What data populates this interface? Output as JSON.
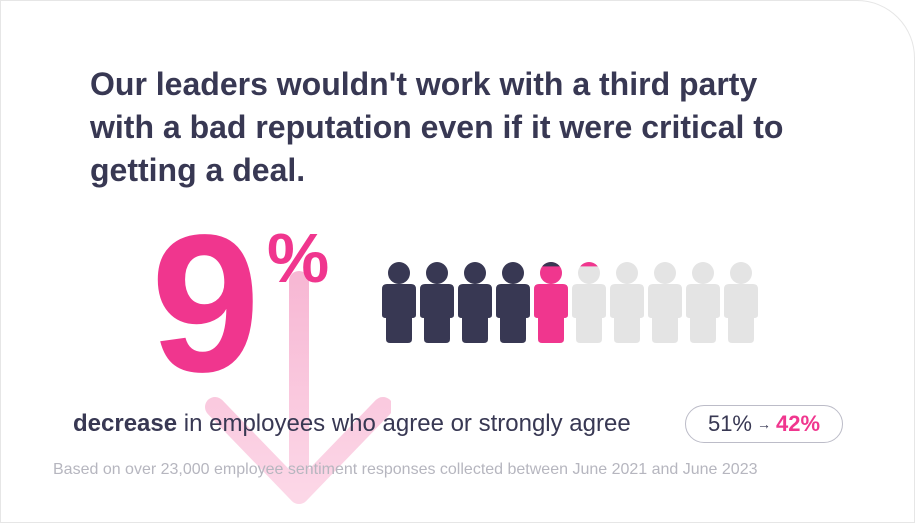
{
  "headline": "Our leaders wouldn't work with a third party with a bad reputation even if it were critical to getting a deal.",
  "stat": {
    "value": "9",
    "unit": "%",
    "direction_icon": "arrow-down-icon"
  },
  "people_chart": {
    "total": 10,
    "before_percent": 51,
    "after_percent": 42,
    "icon": "person-icon",
    "colors": {
      "filled": "#383853",
      "change": "#f0368e",
      "empty": "#e4e4e4"
    }
  },
  "caption": {
    "bold": "decrease",
    "rest": " in employees who agree or strongly agree"
  },
  "comparison": {
    "before": "51%",
    "arrow": "→",
    "after": "42%"
  },
  "source": "Based on over 23,000 employee sentiment responses collected between June 2021 and June 2023",
  "colors": {
    "text": "#383853",
    "accent": "#f0368e",
    "muted": "#b6b6bf"
  }
}
